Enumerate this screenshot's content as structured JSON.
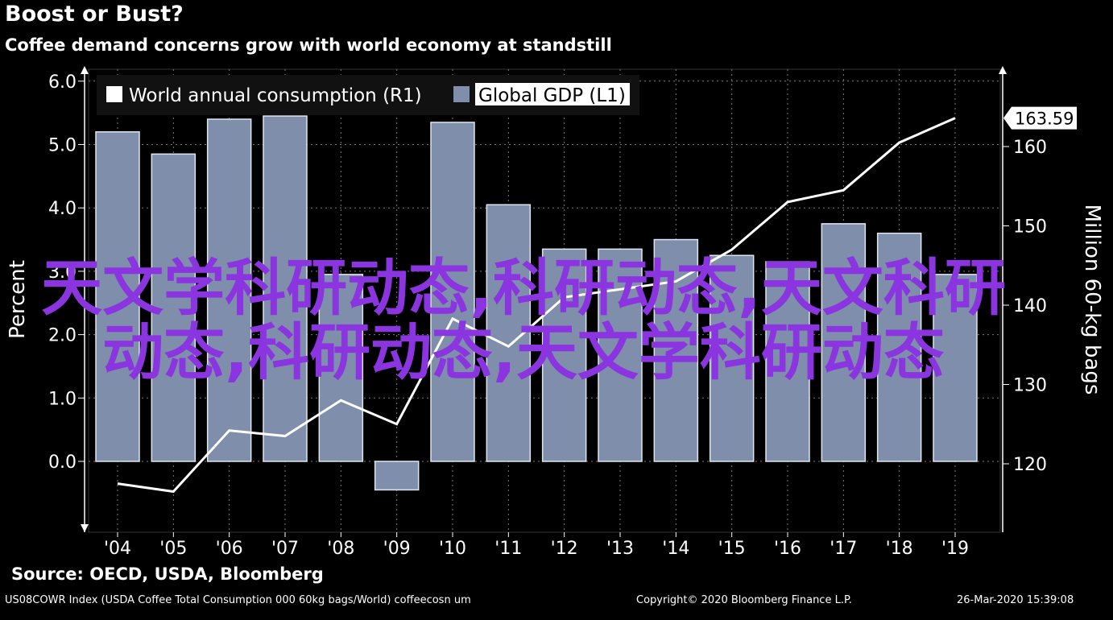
{
  "header": {
    "title": "Boost or Bust?",
    "subtitle": "Coffee demand concerns grow with world economy at standstill"
  },
  "footer": {
    "source": "Source: OECD, USDA, Bloomberg",
    "index_note": "US08COWR Index (USDA Coffee Total Consumption 000 60kg bags/World) coffeecosn um",
    "copyright": "Copyright© 2020 Bloomberg Finance L.P.",
    "timestamp": "26-Mar-2020 15:39:08"
  },
  "overlay": {
    "watermark_text": "天文学科研动态,科研动态,天文科研动态,科研动态,天文学科研动态"
  },
  "colors": {
    "bar_fill": "#7f8fab",
    "bar_stroke": "#dfe5ee",
    "line": "#ffffff",
    "grid": "#7a7a7a",
    "background": "#000000"
  },
  "chart_data": {
    "type": "bar",
    "categories": [
      "'04",
      "'05",
      "'06",
      "'07",
      "'08",
      "'09",
      "'10",
      "'11",
      "'12",
      "'13",
      "'14",
      "'15",
      "'16",
      "'17",
      "'18",
      "'19"
    ],
    "series": [
      {
        "name": "Global GDP (L1)",
        "type": "bar",
        "axis": "left",
        "values": [
          5.2,
          4.85,
          5.4,
          5.45,
          2.95,
          -0.45,
          5.35,
          4.05,
          3.35,
          3.35,
          3.5,
          3.25,
          3.15,
          3.75,
          3.6,
          2.95
        ]
      },
      {
        "name": "World annual consumption (R1)",
        "type": "line",
        "axis": "right",
        "values": [
          117.5,
          116.5,
          124.2,
          123.5,
          128.0,
          125.0,
          138.3,
          134.8,
          141.0,
          142.0,
          143.0,
          147.0,
          153.0,
          154.5,
          160.5,
          163.59
        ]
      }
    ],
    "last_value_label": "163.59",
    "ylabel": "Percent",
    "y2label": "Million 60-kg bags",
    "yticks": [
      "6.0",
      "5.0",
      "4.0",
      "3.0",
      "2.0",
      "1.0",
      "0.0"
    ],
    "y2ticks": [
      "160",
      "150",
      "140",
      "130",
      "120"
    ],
    "ylim": [
      -1.0,
      6.3
    ],
    "y2lim": [
      112.4,
      162.3
    ],
    "grid": true,
    "legend_position": "top-left"
  }
}
